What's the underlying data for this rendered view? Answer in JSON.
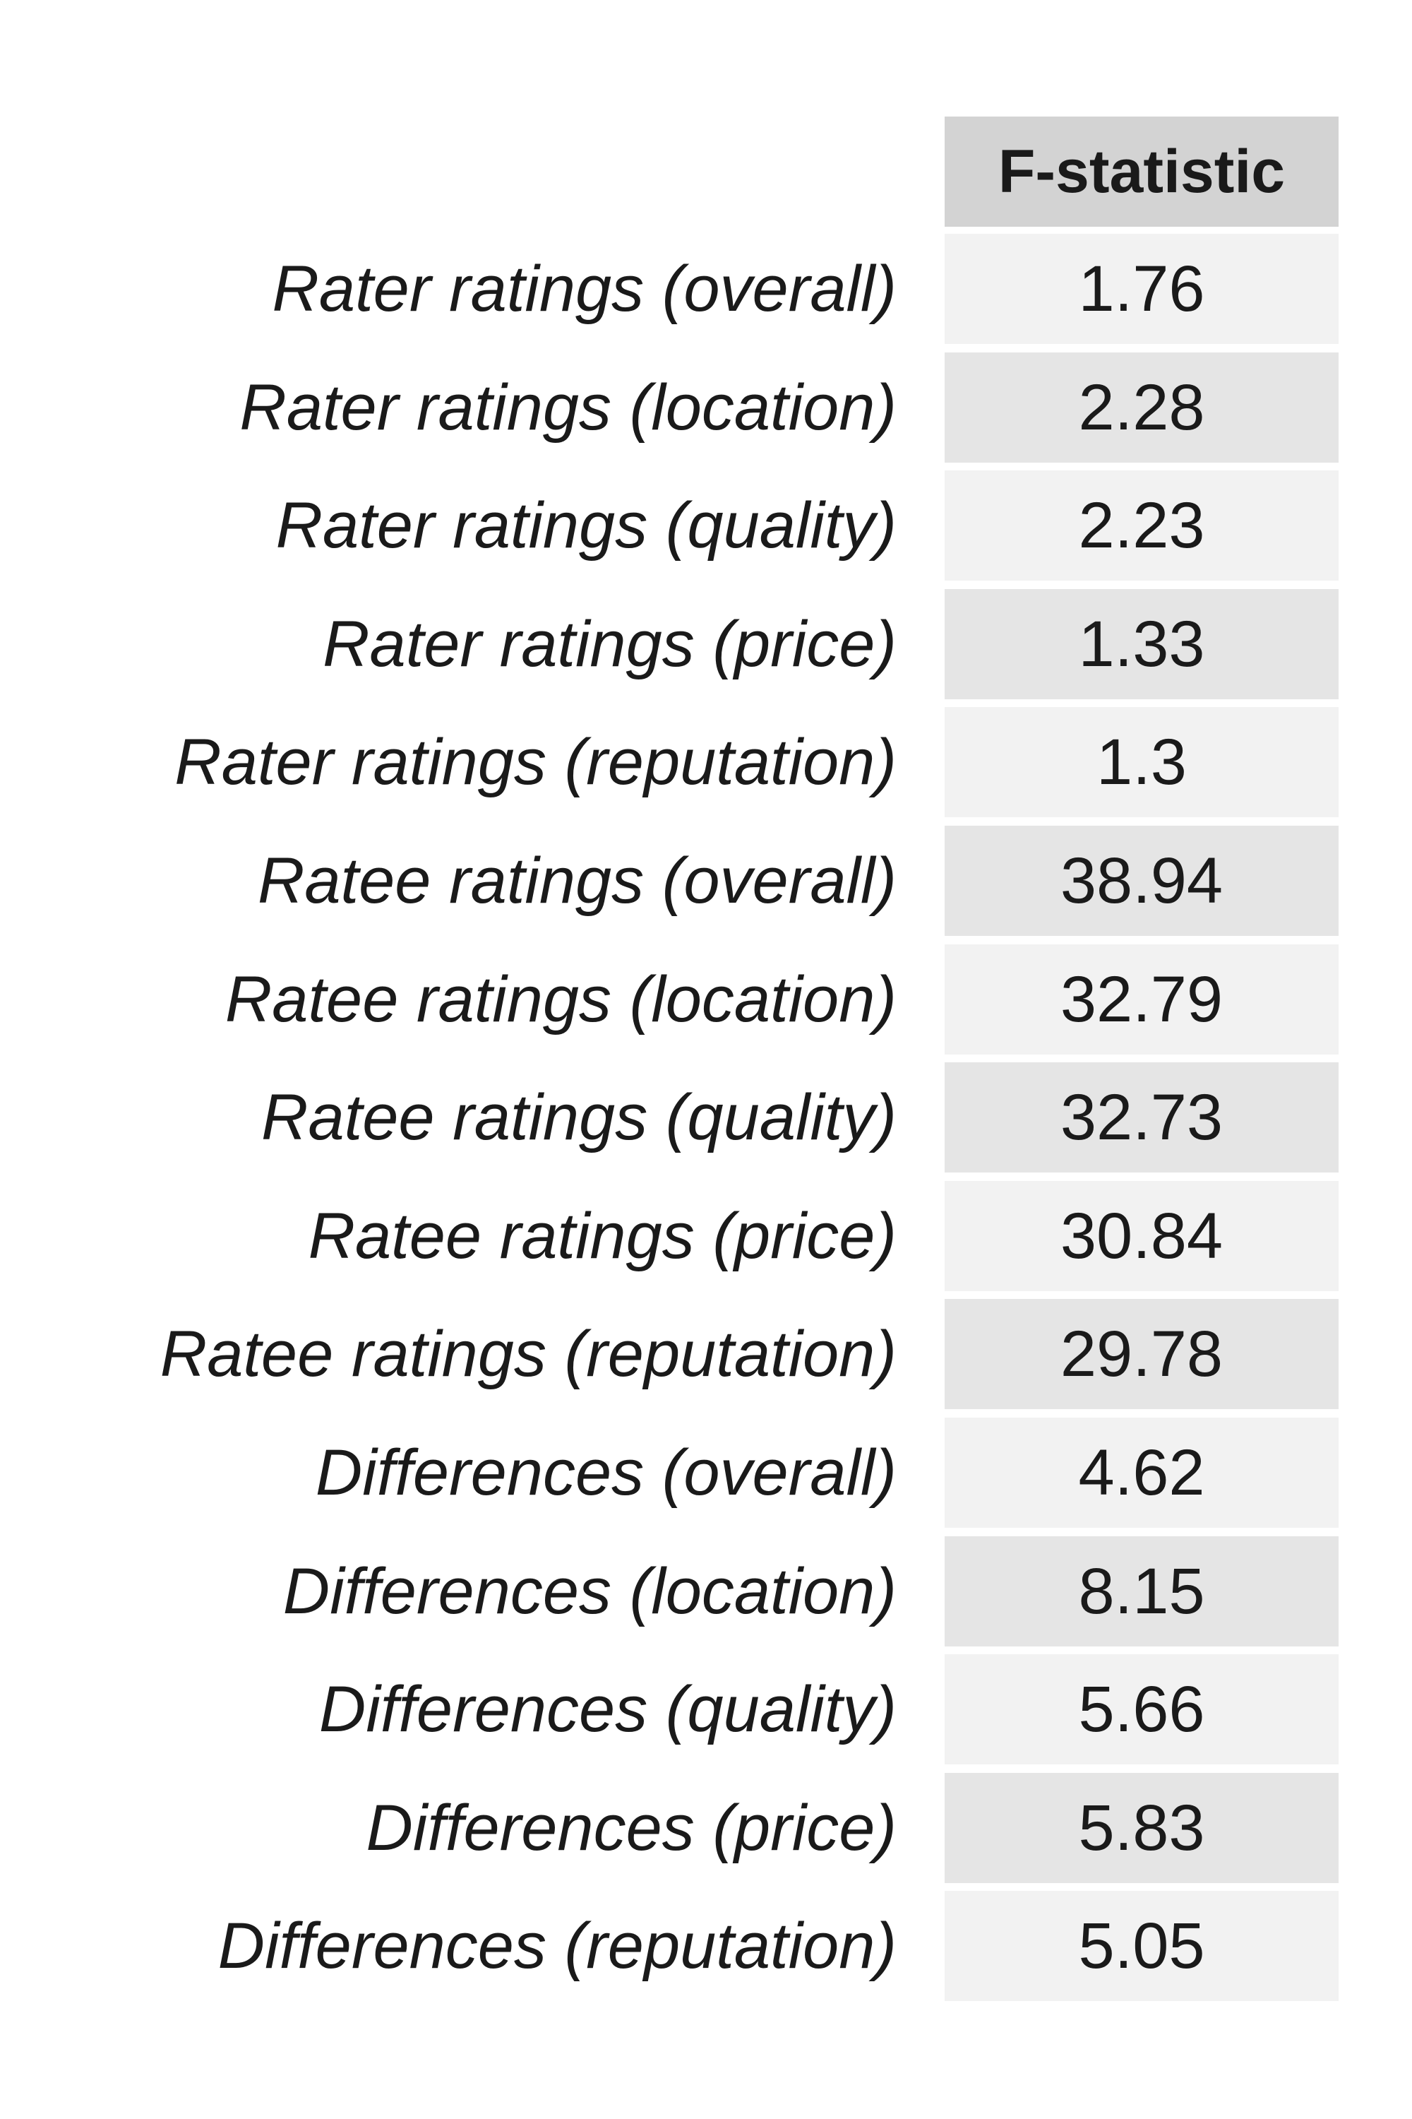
{
  "chart_data": {
    "type": "table",
    "column_header": "F-statistic",
    "rows": [
      {
        "label": "Rater ratings (overall)",
        "value": "1.76"
      },
      {
        "label": "Rater ratings (location)",
        "value": "2.28"
      },
      {
        "label": "Rater ratings (quality)",
        "value": "2.23"
      },
      {
        "label": "Rater ratings (price)",
        "value": "1.33"
      },
      {
        "label": "Rater ratings (reputation)",
        "value": "1.3"
      },
      {
        "label": "Ratee ratings (overall)",
        "value": "38.94"
      },
      {
        "label": "Ratee ratings (location)",
        "value": "32.79"
      },
      {
        "label": "Ratee ratings (quality)",
        "value": "32.73"
      },
      {
        "label": "Ratee ratings (price)",
        "value": "30.84"
      },
      {
        "label": "Ratee ratings (reputation)",
        "value": "29.78"
      },
      {
        "label": "Differences (overall)",
        "value": "4.62"
      },
      {
        "label": "Differences (location)",
        "value": "8.15"
      },
      {
        "label": "Differences (quality)",
        "value": "5.66"
      },
      {
        "label": "Differences (price)",
        "value": "5.83"
      },
      {
        "label": "Differences (reputation)",
        "value": "5.05"
      }
    ],
    "colors": {
      "header_bg": "#d3d3d3",
      "row_light": "#f2f2f2",
      "row_dark": "#e5e5e5",
      "text": "#1a1a1a"
    }
  }
}
